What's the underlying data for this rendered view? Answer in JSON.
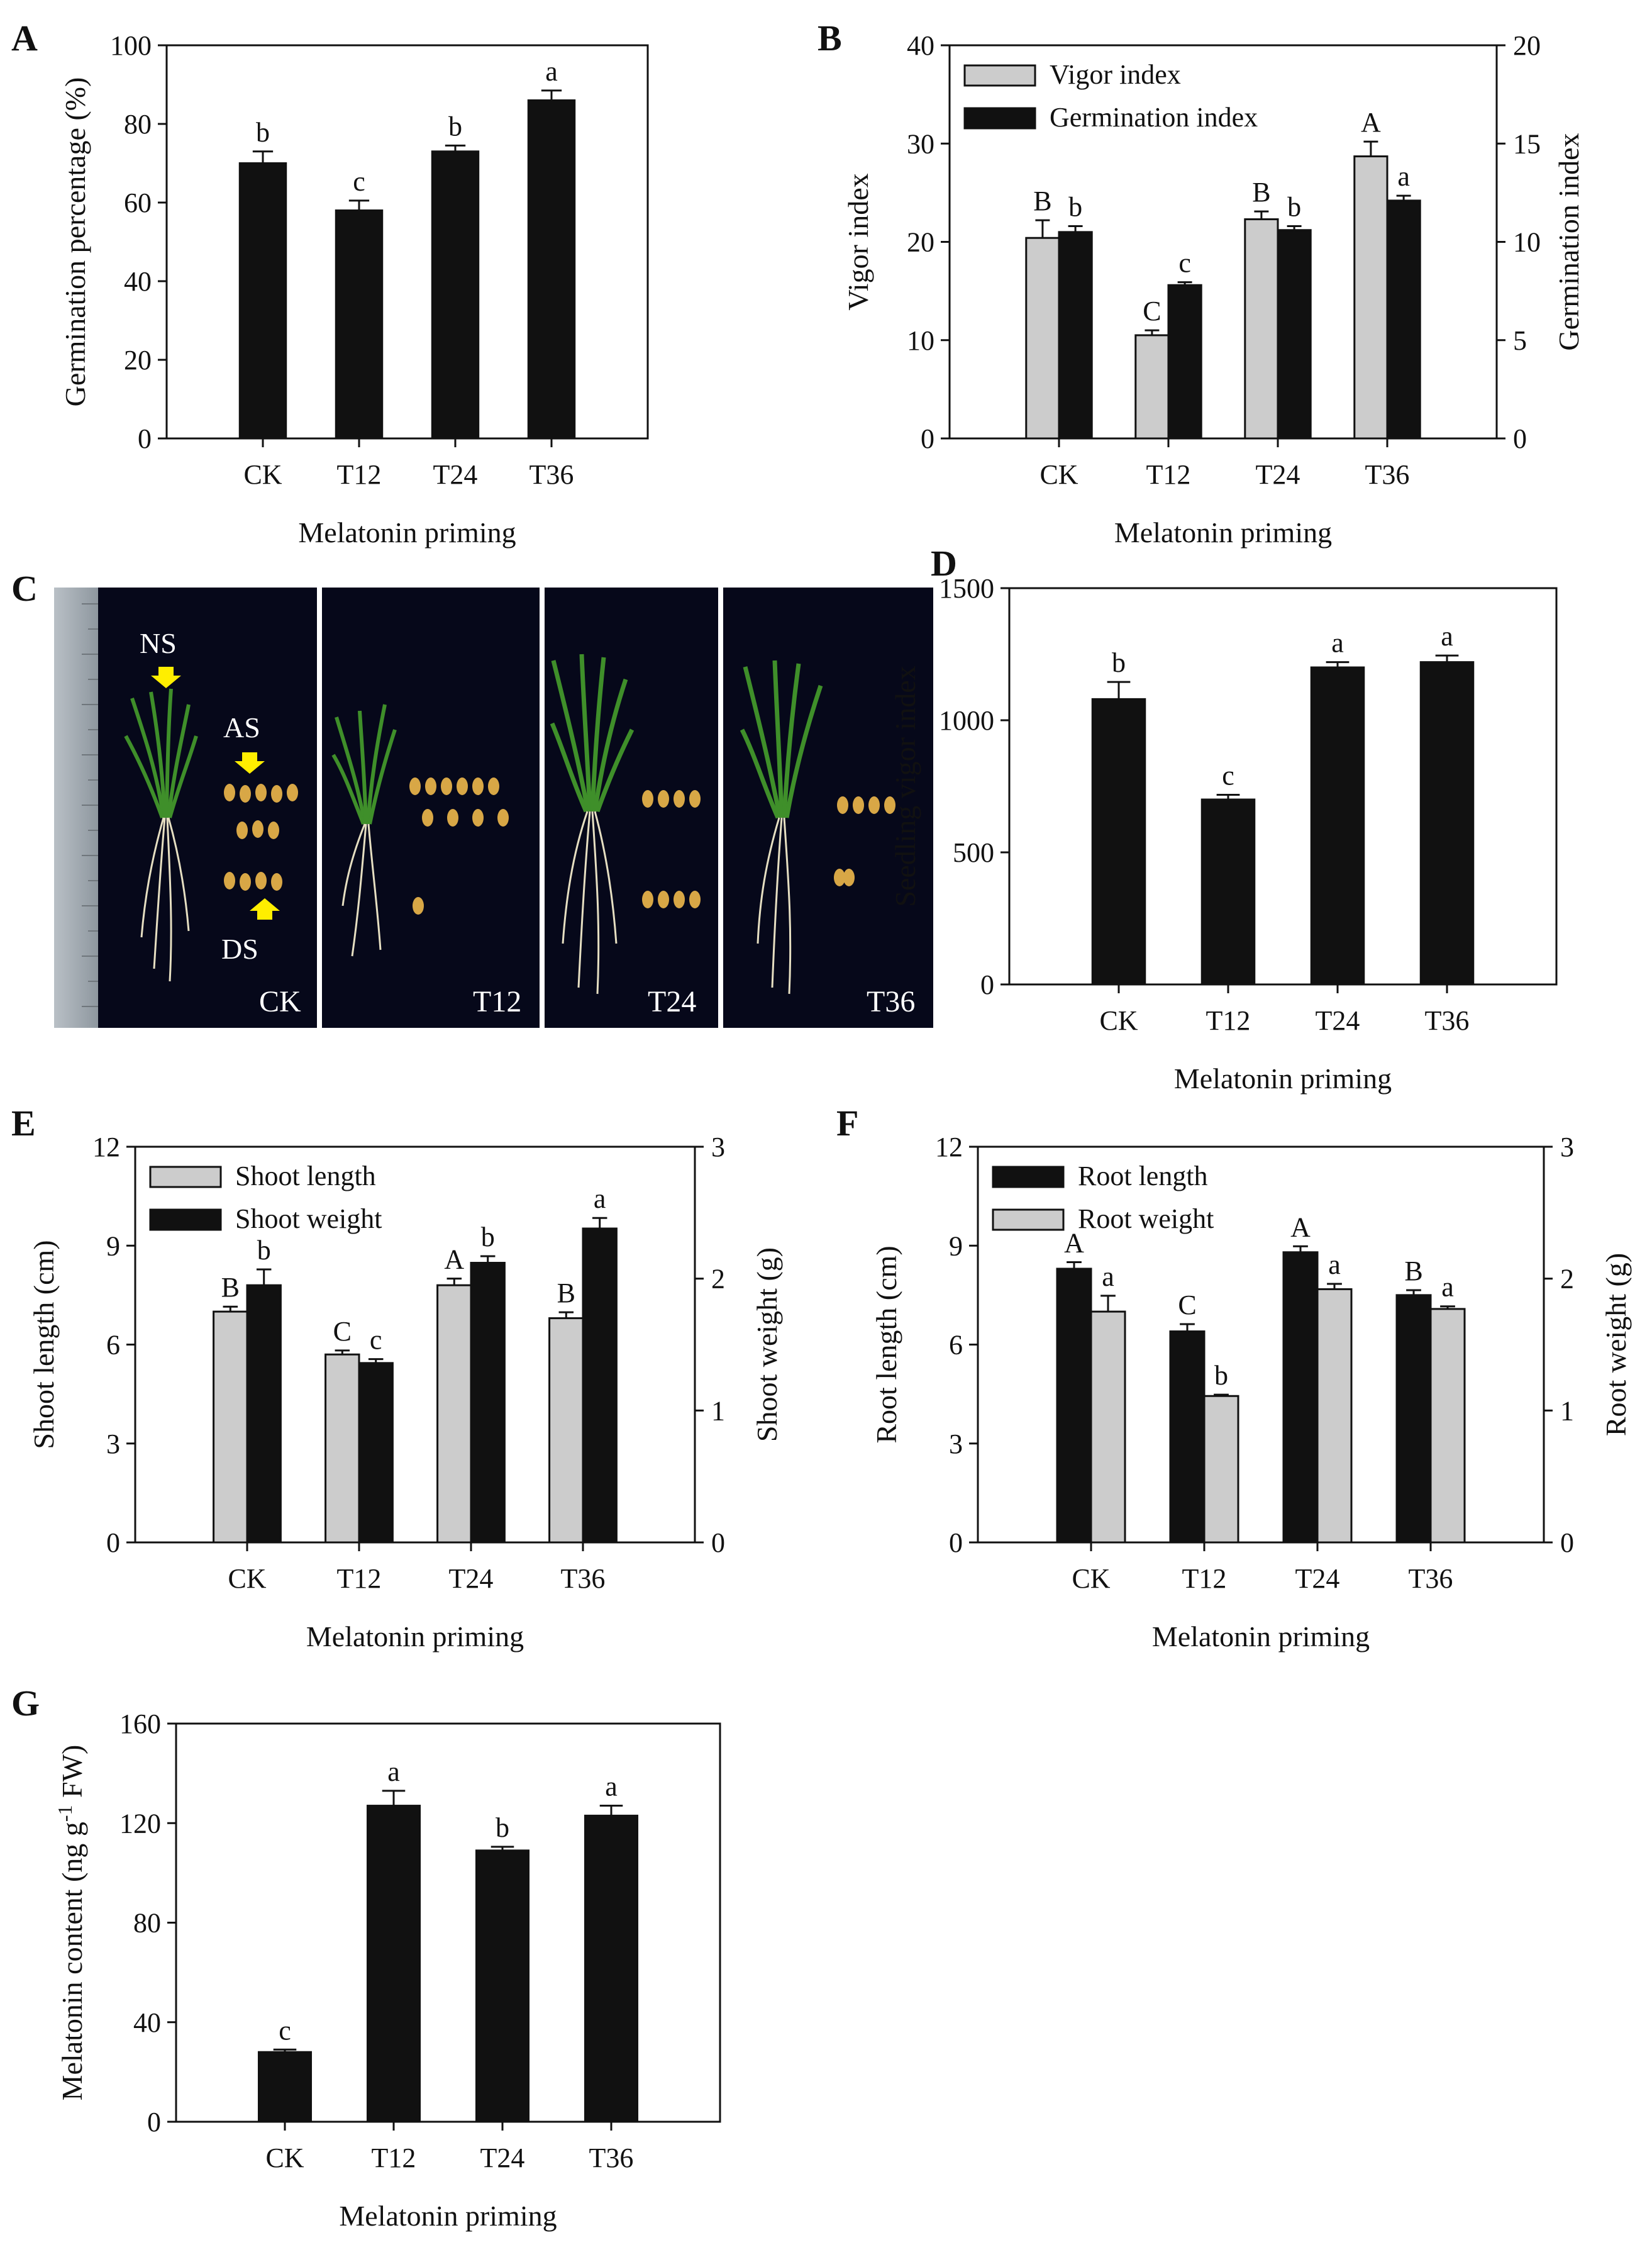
{
  "colors": {
    "black": "#111111",
    "gray": "#cccccc",
    "photo_bg": "#06081a",
    "leaf": "#3f8f2a",
    "seed": "#d8a746",
    "root": "#e6dfc2",
    "arrow": "#ffee00"
  },
  "chart_data": [
    {
      "id": "A",
      "type": "bar",
      "panel_label": "A",
      "categories": [
        "CK",
        "T12",
        "T24",
        "T36"
      ],
      "series": [
        {
          "name": "Germination percentage",
          "axis": "left",
          "color": "#111111",
          "values": [
            70,
            58,
            73,
            86
          ],
          "errors": [
            3,
            2.5,
            1.5,
            2.5
          ],
          "letters": [
            "b",
            "c",
            "b",
            "a"
          ]
        }
      ],
      "left_axis": {
        "title": "Germination percentage (%)",
        "range": [
          0,
          100
        ],
        "ticks": [
          0,
          20,
          40,
          60,
          80,
          100
        ]
      },
      "xlabel": "Melatonin priming",
      "legend": []
    },
    {
      "id": "B",
      "type": "bar",
      "panel_label": "B",
      "categories": [
        "CK",
        "T12",
        "T24",
        "T36"
      ],
      "series": [
        {
          "name": "Vigor index",
          "axis": "left",
          "color": "#cccccc",
          "values": [
            20.4,
            10.5,
            22.3,
            28.7
          ],
          "errors": [
            1.8,
            0.5,
            0.8,
            1.5
          ],
          "letters": [
            "B",
            "C",
            "B",
            "A"
          ]
        },
        {
          "name": "Germination index",
          "axis": "right",
          "color": "#111111",
          "values": [
            10.5,
            7.8,
            10.6,
            12.1
          ],
          "errors": [
            0.3,
            0.15,
            0.2,
            0.25
          ],
          "letters": [
            "b",
            "c",
            "b",
            "a"
          ]
        }
      ],
      "left_axis": {
        "title": "Vigor index",
        "range": [
          0,
          40
        ],
        "ticks": [
          0,
          10,
          20,
          30,
          40
        ]
      },
      "right_axis": {
        "title": "Germination index",
        "range": [
          0,
          20
        ],
        "ticks": [
          0,
          5,
          10,
          15,
          20
        ]
      },
      "xlabel": "Melatonin priming",
      "legend": [
        "Vigor index",
        "Germination index"
      ],
      "legend_position": "top-left"
    },
    {
      "id": "D",
      "type": "bar",
      "panel_label": "D",
      "categories": [
        "CK",
        "T12",
        "T24",
        "T36"
      ],
      "series": [
        {
          "name": "Seedling vigor index",
          "axis": "left",
          "color": "#111111",
          "values": [
            1080,
            700,
            1200,
            1220
          ],
          "errors": [
            65,
            18,
            20,
            25
          ],
          "letters": [
            "b",
            "c",
            "a",
            "a"
          ]
        }
      ],
      "left_axis": {
        "title": "Seedling vigor index",
        "range": [
          0,
          1500
        ],
        "ticks": [
          0,
          500,
          1000,
          1500
        ]
      },
      "xlabel": "Melatonin priming",
      "legend": []
    },
    {
      "id": "E",
      "type": "bar",
      "panel_label": "E",
      "categories": [
        "CK",
        "T12",
        "T24",
        "T36"
      ],
      "series": [
        {
          "name": "Shoot length",
          "axis": "left",
          "color": "#cccccc",
          "values": [
            7.0,
            5.7,
            7.8,
            6.8
          ],
          "errors": [
            0.15,
            0.12,
            0.2,
            0.18
          ],
          "letters": [
            "B",
            "C",
            "A",
            "B"
          ]
        },
        {
          "name": "Shoot weight",
          "axis": "right",
          "color": "#111111",
          "values": [
            1.95,
            1.36,
            2.12,
            2.38
          ],
          "errors": [
            0.12,
            0.03,
            0.05,
            0.08
          ],
          "letters": [
            "b",
            "c",
            "b",
            "a"
          ]
        }
      ],
      "left_axis": {
        "title": "Shoot length (cm)",
        "range": [
          0,
          12
        ],
        "ticks": [
          0,
          3,
          6,
          9,
          12
        ]
      },
      "right_axis": {
        "title": "Shoot weight (g)",
        "range": [
          0,
          3
        ],
        "ticks": [
          0,
          1,
          2,
          3
        ]
      },
      "xlabel": "Melatonin priming",
      "legend": [
        "Shoot length",
        "Shoot weight"
      ],
      "legend_position": "top-left"
    },
    {
      "id": "F",
      "type": "bar",
      "panel_label": "F",
      "categories": [
        "CK",
        "T12",
        "T24",
        "T36"
      ],
      "series": [
        {
          "name": "Root length",
          "axis": "left",
          "color": "#111111",
          "values": [
            8.3,
            6.4,
            8.8,
            7.5
          ],
          "errors": [
            0.2,
            0.22,
            0.18,
            0.15
          ],
          "letters": [
            "A",
            "C",
            "A",
            "B"
          ]
        },
        {
          "name": "Root weight",
          "axis": "right",
          "color": "#cccccc",
          "values": [
            1.75,
            1.11,
            1.92,
            1.77
          ],
          "errors": [
            0.12,
            0.01,
            0.04,
            0.02
          ],
          "letters": [
            "a",
            "b",
            "a",
            "a"
          ]
        }
      ],
      "left_axis": {
        "title": "Root length (cm)",
        "range": [
          0,
          12
        ],
        "ticks": [
          0,
          3,
          6,
          9,
          12
        ]
      },
      "right_axis": {
        "title": "Root weight (g)",
        "range": [
          0,
          3
        ],
        "ticks": [
          0,
          1,
          2,
          3
        ]
      },
      "xlabel": "Melatonin priming",
      "legend": [
        "Root length",
        "Root weight"
      ],
      "legend_position": "top-left"
    },
    {
      "id": "G",
      "type": "bar",
      "panel_label": "G",
      "categories": [
        "CK",
        "T12",
        "T24",
        "T36"
      ],
      "series": [
        {
          "name": "Melatonin content",
          "axis": "left",
          "color": "#111111",
          "values": [
            28,
            127,
            109,
            123
          ],
          "errors": [
            1,
            6,
            1.5,
            4
          ],
          "letters": [
            "c",
            "a",
            "b",
            "a"
          ]
        }
      ],
      "left_axis": {
        "title": "Melatonin content (ng g-1 FW)",
        "range": [
          0,
          160
        ],
        "ticks": [
          0,
          40,
          80,
          120,
          160
        ]
      },
      "xlabel": "Melatonin priming",
      "legend": []
    }
  ],
  "photo_panel": {
    "panel_label": "C",
    "sections": [
      "CK",
      "T12",
      "T24",
      "T36"
    ],
    "annotations": [
      "NS",
      "AS",
      "DS"
    ]
  }
}
